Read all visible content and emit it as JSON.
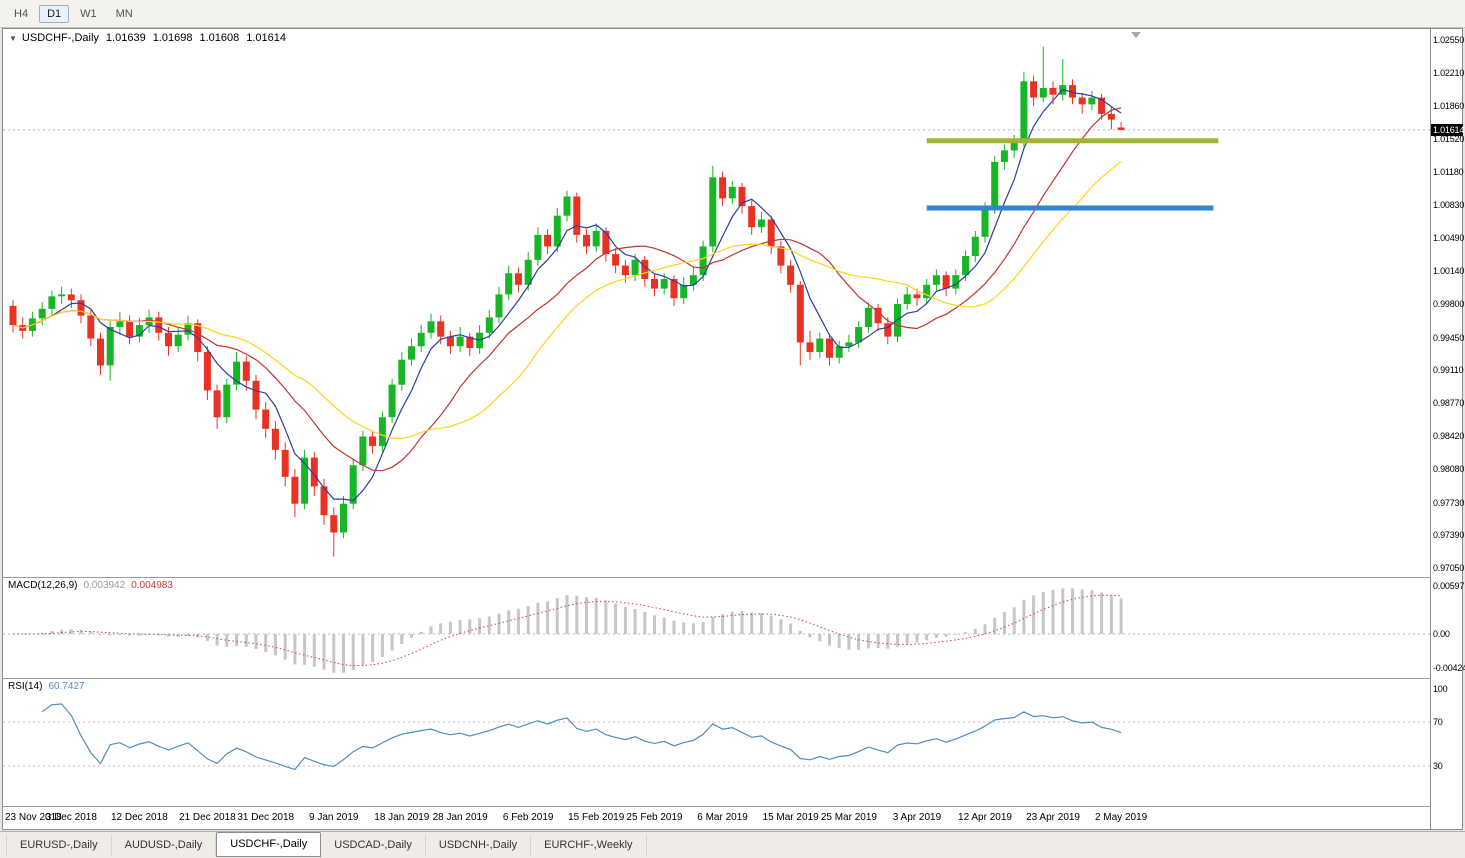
{
  "toolbar": {
    "timeframes": [
      {
        "label": "H4",
        "active": false
      },
      {
        "label": "D1",
        "active": true
      },
      {
        "label": "W1",
        "active": false
      },
      {
        "label": "MN",
        "active": false
      }
    ]
  },
  "chart": {
    "legend": {
      "symbol": "USDCHF-,Daily",
      "open": "1.01639",
      "high": "1.01698",
      "low": "1.01608",
      "close": "1.01614"
    },
    "price_axis": {
      "labels": [
        "1.02550",
        "1.02210",
        "1.01860",
        "1.01520",
        "1.01180",
        "1.00830",
        "1.00490",
        "1.00140",
        "0.99800",
        "0.99450",
        "0.99110",
        "0.98770",
        "0.98420",
        "0.98080",
        "0.97730",
        "0.97390",
        "0.97050"
      ],
      "badge": "1.01614"
    },
    "date_axis": {
      "labels": [
        "23 Nov 2018",
        "3 Dec 2018",
        "12 Dec 2018",
        "21 Dec 2018",
        "31 Dec 2018",
        "9 Jan 2019",
        "18 Jan 2019",
        "28 Jan 2019",
        "6 Feb 2019",
        "15 Feb 2019",
        "25 Feb 2019",
        "6 Mar 2019",
        "15 Mar 2019",
        "25 Mar 2019",
        "3 Apr 2019",
        "12 Apr 2019",
        "23 Apr 2019",
        "2 May 2019"
      ],
      "tick_indices": [
        0,
        6,
        13,
        20,
        26,
        33,
        40,
        46,
        53,
        60,
        66,
        73,
        80,
        86,
        93,
        100,
        107,
        114
      ]
    },
    "colors": {
      "bull": "#18b526",
      "bear": "#ea3224",
      "price_line": "#b6b6b6"
    },
    "hlines": [
      {
        "price": 1.015,
        "color": "#a0b431",
        "thickness": 5,
        "from_index": 94,
        "to_index": 124
      },
      {
        "price": 1.008,
        "color": "#2e86d0",
        "thickness": 5,
        "from_index": 94,
        "to_index": 123.5
      }
    ]
  },
  "chart_data": {
    "type": "candlestick",
    "symbol": "USDCHF-",
    "timeframe": "Daily",
    "ylim": [
      0.9705,
      1.0255
    ],
    "candles": [
      [
        0.9978,
        0.9984,
        0.995,
        0.9958
      ],
      [
        0.9958,
        0.9966,
        0.9944,
        0.9952
      ],
      [
        0.9952,
        0.9972,
        0.9946,
        0.9965
      ],
      [
        0.9965,
        0.9982,
        0.9958,
        0.9975
      ],
      [
        0.9975,
        0.9994,
        0.9968,
        0.9988
      ],
      [
        0.9988,
        0.9998,
        0.998,
        0.999
      ],
      [
        0.999,
        0.9996,
        0.9976,
        0.9984
      ],
      [
        0.9984,
        0.999,
        0.996,
        0.9968
      ],
      [
        0.9968,
        0.9974,
        0.9936,
        0.9944
      ],
      [
        0.9944,
        0.995,
        0.9906,
        0.9916
      ],
      [
        0.9916,
        0.9962,
        0.99,
        0.9956
      ],
      [
        0.9956,
        0.9972,
        0.9948,
        0.9962
      ],
      [
        0.9962,
        0.9968,
        0.9938,
        0.9946
      ],
      [
        0.9946,
        0.9966,
        0.994,
        0.9958
      ],
      [
        0.9958,
        0.9974,
        0.995,
        0.9966
      ],
      [
        0.9966,
        0.9972,
        0.9942,
        0.995
      ],
      [
        0.995,
        0.9956,
        0.9926,
        0.9936
      ],
      [
        0.9936,
        0.9956,
        0.993,
        0.9948
      ],
      [
        0.9948,
        0.9968,
        0.9942,
        0.996
      ],
      [
        0.996,
        0.9964,
        0.992,
        0.993
      ],
      [
        0.993,
        0.9936,
        0.988,
        0.989
      ],
      [
        0.989,
        0.9896,
        0.985,
        0.9862
      ],
      [
        0.9862,
        0.9902,
        0.9856,
        0.9896
      ],
      [
        0.9896,
        0.993,
        0.989,
        0.992
      ],
      [
        0.992,
        0.9926,
        0.989,
        0.99
      ],
      [
        0.99,
        0.9906,
        0.986,
        0.987
      ],
      [
        0.987,
        0.9878,
        0.984,
        0.985
      ],
      [
        0.985,
        0.9858,
        0.9818,
        0.9828
      ],
      [
        0.9828,
        0.9836,
        0.979,
        0.98
      ],
      [
        0.98,
        0.9808,
        0.9758,
        0.9772
      ],
      [
        0.9772,
        0.9828,
        0.9766,
        0.982
      ],
      [
        0.982,
        0.9826,
        0.978,
        0.979
      ],
      [
        0.979,
        0.9798,
        0.975,
        0.976
      ],
      [
        0.976,
        0.9768,
        0.9717,
        0.9742
      ],
      [
        0.9742,
        0.978,
        0.9736,
        0.9772
      ],
      [
        0.9772,
        0.9818,
        0.9766,
        0.9812
      ],
      [
        0.9812,
        0.9848,
        0.9806,
        0.9842
      ],
      [
        0.9842,
        0.9848,
        0.9824,
        0.9832
      ],
      [
        0.9832,
        0.9868,
        0.9826,
        0.9862
      ],
      [
        0.9862,
        0.9902,
        0.9856,
        0.9896
      ],
      [
        0.9896,
        0.993,
        0.989,
        0.9922
      ],
      [
        0.9922,
        0.9944,
        0.9916,
        0.9936
      ],
      [
        0.9936,
        0.9958,
        0.993,
        0.995
      ],
      [
        0.995,
        0.997,
        0.9944,
        0.9962
      ],
      [
        0.9962,
        0.9968,
        0.9938,
        0.9946
      ],
      [
        0.9946,
        0.9952,
        0.9928,
        0.9936
      ],
      [
        0.9936,
        0.9956,
        0.993,
        0.9946
      ],
      [
        0.9946,
        0.995,
        0.9926,
        0.9934
      ],
      [
        0.9934,
        0.9958,
        0.9928,
        0.995
      ],
      [
        0.995,
        0.9974,
        0.9944,
        0.9966
      ],
      [
        0.9966,
        0.9998,
        0.996,
        0.999
      ],
      [
        0.999,
        1.002,
        0.9984,
        1.0012
      ],
      [
        1.0012,
        1.0018,
        0.9992,
        1.0
      ],
      [
        1.0,
        1.0034,
        0.9994,
        1.0026
      ],
      [
        1.0026,
        1.006,
        1.002,
        1.0052
      ],
      [
        1.0052,
        1.0058,
        1.0032,
        1.004
      ],
      [
        1.004,
        1.008,
        1.0034,
        1.0072
      ],
      [
        1.0072,
        1.0098,
        1.0066,
        1.0092
      ],
      [
        1.0092,
        1.0096,
        1.0044,
        1.0052
      ],
      [
        1.0052,
        1.0058,
        1.0032,
        1.004
      ],
      [
        1.004,
        1.0064,
        1.0034,
        1.0056
      ],
      [
        1.0056,
        1.006,
        1.0024,
        1.0032
      ],
      [
        1.0032,
        1.0038,
        1.0012,
        1.002
      ],
      [
        1.002,
        1.0026,
        1.0002,
        1.001
      ],
      [
        1.001,
        1.0032,
        1.0004,
        1.0026
      ],
      [
        1.0026,
        1.003,
        0.9998,
        1.0006
      ],
      [
        1.0006,
        1.0012,
        0.9988,
        0.9996
      ],
      [
        0.9996,
        1.0012,
        0.999,
        1.0006
      ],
      [
        1.0006,
        1.001,
        0.9978,
        0.9986
      ],
      [
        0.9986,
        1.0008,
        0.998,
        1.0
      ],
      [
        1.0,
        1.0018,
        0.9994,
        1.001
      ],
      [
        1.001,
        1.0046,
        1.0004,
        1.004
      ],
      [
        1.004,
        1.0124,
        1.0034,
        1.0112
      ],
      [
        1.0112,
        1.0118,
        1.0082,
        1.009
      ],
      [
        1.009,
        1.0108,
        1.0084,
        1.0102
      ],
      [
        1.0102,
        1.0106,
        1.0074,
        1.0082
      ],
      [
        1.0082,
        1.0088,
        1.0052,
        1.006
      ],
      [
        1.006,
        1.0076,
        1.0054,
        1.0068
      ],
      [
        1.0068,
        1.0072,
        1.0032,
        1.004
      ],
      [
        1.004,
        1.0046,
        1.0012,
        1.002
      ],
      [
        1.002,
        1.0026,
        0.9992,
        1.0
      ],
      [
        1.0,
        1.0004,
        0.9916,
        0.994
      ],
      [
        0.994,
        0.9952,
        0.9922,
        0.993
      ],
      [
        0.993,
        0.995,
        0.9924,
        0.9944
      ],
      [
        0.9944,
        0.9948,
        0.9916,
        0.9924
      ],
      [
        0.9924,
        0.9942,
        0.9918,
        0.9936
      ],
      [
        0.9936,
        0.9948,
        0.993,
        0.994
      ],
      [
        0.994,
        0.9962,
        0.9934,
        0.9956
      ],
      [
        0.9956,
        0.9982,
        0.995,
        0.9976
      ],
      [
        0.9976,
        0.998,
        0.9952,
        0.996
      ],
      [
        0.996,
        0.9966,
        0.9938,
        0.9946
      ],
      [
        0.9946,
        0.9986,
        0.994,
        0.998
      ],
      [
        0.998,
        0.9998,
        0.9974,
        0.999
      ],
      [
        0.999,
        0.9996,
        0.9978,
        0.9986
      ],
      [
        0.9986,
        1.0006,
        0.998,
        1.0
      ],
      [
        1.0,
        1.0016,
        0.9994,
        1.001
      ],
      [
        1.001,
        1.0014,
        0.9988,
        0.9996
      ],
      [
        0.9996,
        1.0016,
        0.999,
        1.001
      ],
      [
        1.001,
        1.0036,
        1.0004,
        1.003
      ],
      [
        1.003,
        1.0056,
        1.0024,
        1.005
      ],
      [
        1.005,
        1.0086,
        1.0044,
        1.008
      ],
      [
        1.008,
        1.0134,
        1.0074,
        1.0128
      ],
      [
        1.0128,
        1.0146,
        1.012,
        1.014
      ],
      [
        1.014,
        1.0156,
        1.0132,
        1.015
      ],
      [
        1.015,
        1.0222,
        1.0144,
        1.0212
      ],
      [
        1.0212,
        1.0218,
        1.0186,
        1.0195
      ],
      [
        1.0195,
        1.0248,
        1.019,
        1.0205
      ],
      [
        1.0205,
        1.0212,
        1.0188,
        1.0198
      ],
      [
        1.0198,
        1.0235,
        1.0192,
        1.0208
      ],
      [
        1.0208,
        1.0214,
        1.0188,
        1.0195
      ],
      [
        1.0195,
        1.02,
        1.0178,
        1.0188
      ],
      [
        1.0188,
        1.0202,
        1.0182,
        1.0195
      ],
      [
        1.0195,
        1.0199,
        1.0172,
        1.0178
      ],
      [
        1.0178,
        1.0186,
        1.0162,
        1.0172
      ],
      [
        1.01639,
        1.01698,
        1.01608,
        1.01614
      ]
    ],
    "overlays": [
      {
        "name": "ma-fast",
        "type": "sma",
        "period": 5,
        "color": "#2c3e9e"
      },
      {
        "name": "ma-mid",
        "type": "sma",
        "period": 13,
        "color": "#c03434"
      },
      {
        "name": "ma-slow",
        "type": "sma",
        "period": 21,
        "color": "#ffd21e"
      }
    ]
  },
  "macd": {
    "label": "MACD(12,26,9)",
    "main_value": "0.003942",
    "signal_value": "0.004983",
    "axis": [
      "0.00597",
      "0.00",
      "-0.00424"
    ],
    "axis_values": [
      0.00597,
      0,
      -0.00424
    ],
    "params": {
      "fast": 12,
      "slow": 26,
      "signal": 9
    },
    "colors": {
      "histogram": "#c6c6c6",
      "signal": "#cf4242"
    }
  },
  "rsi": {
    "label": "RSI(14)",
    "value": "60.7427",
    "period": 14,
    "axis": [
      "100",
      "70",
      "30"
    ],
    "levels": [
      70,
      30
    ],
    "color": "#4e8cc2"
  },
  "tabs": [
    {
      "label": "EURUSD-,Daily",
      "active": false
    },
    {
      "label": "AUDUSD-,Daily",
      "active": false
    },
    {
      "label": "USDCHF-,Daily",
      "active": true
    },
    {
      "label": "USDCAD-,Daily",
      "active": false
    },
    {
      "label": "USDCNH-,Daily",
      "active": false
    },
    {
      "label": "EURCHF-,Weekly",
      "active": false
    }
  ]
}
